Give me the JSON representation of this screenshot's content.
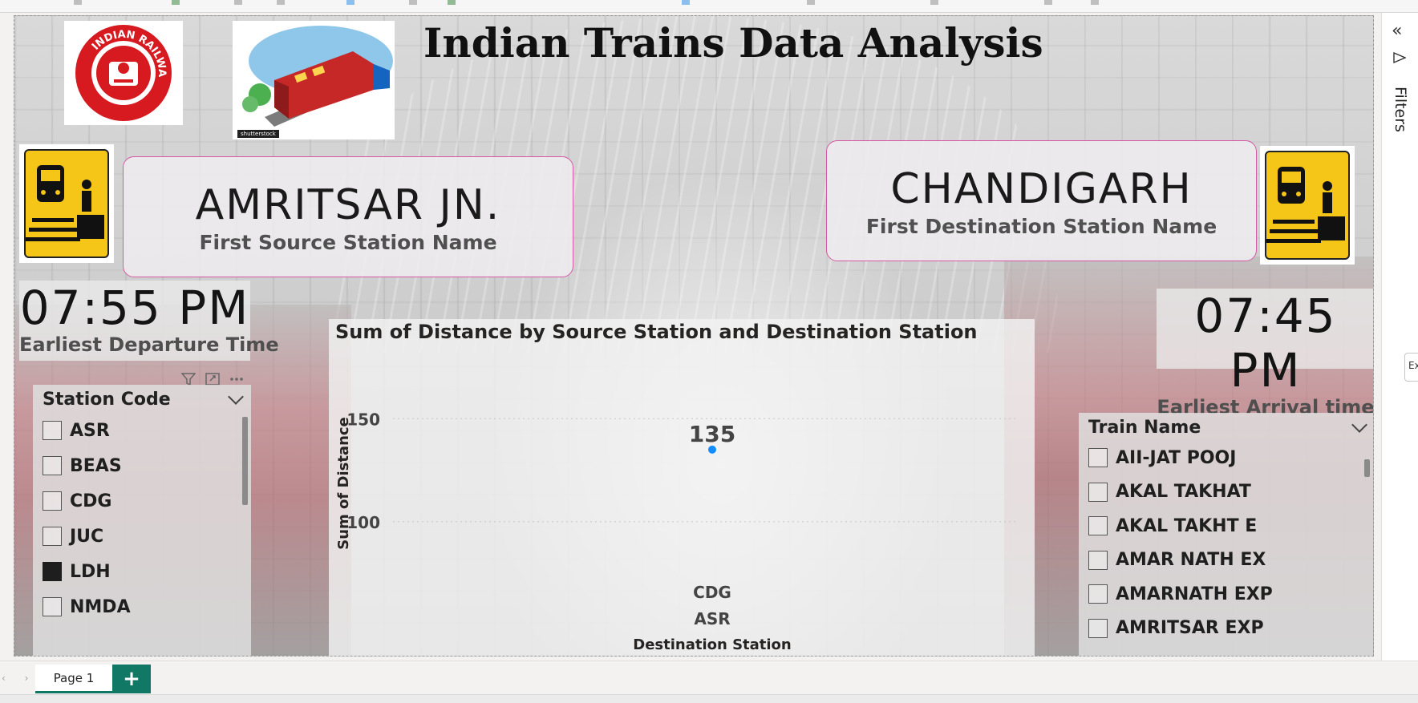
{
  "report": {
    "title": "Indian Trains Data Analysis",
    "logo_text": "INDIAN RAILWAYS",
    "image_credit": "shutterstock"
  },
  "source_card": {
    "value": "AMRITSAR JN.",
    "label": "First Source Station Name"
  },
  "destination_card": {
    "value": "CHANDIGARH",
    "label": "First Destination Station Name"
  },
  "departure": {
    "value": "07:55 PM",
    "label": "Earliest Departure Time"
  },
  "arrival": {
    "value": "07:45 PM",
    "label": "Earliest Arrival time"
  },
  "station_slicer": {
    "header": "Station Code",
    "items": [
      {
        "label": "ASR",
        "checked": false
      },
      {
        "label": "BEAS",
        "checked": false
      },
      {
        "label": "CDG",
        "checked": false
      },
      {
        "label": "JUC",
        "checked": false
      },
      {
        "label": "LDH",
        "checked": true
      },
      {
        "label": "NMDA",
        "checked": false
      }
    ]
  },
  "train_slicer": {
    "header": "Train Name",
    "items": [
      {
        "label": "AII-JAT POOJ",
        "checked": false
      },
      {
        "label": "AKAL TAKHAT",
        "checked": false
      },
      {
        "label": "AKAL TAKHT E",
        "checked": false
      },
      {
        "label": "AMAR NATH EX",
        "checked": false
      },
      {
        "label": "AMARNATH EXP",
        "checked": false
      },
      {
        "label": "AMRITSAR EXP",
        "checked": false
      }
    ]
  },
  "chart_data": {
    "type": "scatter",
    "title": "Sum of Distance by Source Station and Destination Station",
    "ylabel": "Sum of Distance",
    "xlabel": "Destination Station",
    "yticks": [
      150,
      100
    ],
    "ylim": [
      70,
      175
    ],
    "points": [
      {
        "destination": "CDG",
        "source": "ASR",
        "value": 135
      }
    ],
    "x_labels": [
      "CDG",
      "ASR"
    ],
    "point_color": "#118dff",
    "grid": true
  },
  "tabs": {
    "page": "Page 1",
    "add": "+"
  },
  "filters_pane": {
    "label": "Filters",
    "collapse_icon": "«",
    "export_hint": "Ex"
  },
  "colors": {
    "accent": "#117865",
    "card_border": "#d45aa6",
    "sign_yellow": "#f5c518",
    "rail_red": "#d71920"
  }
}
